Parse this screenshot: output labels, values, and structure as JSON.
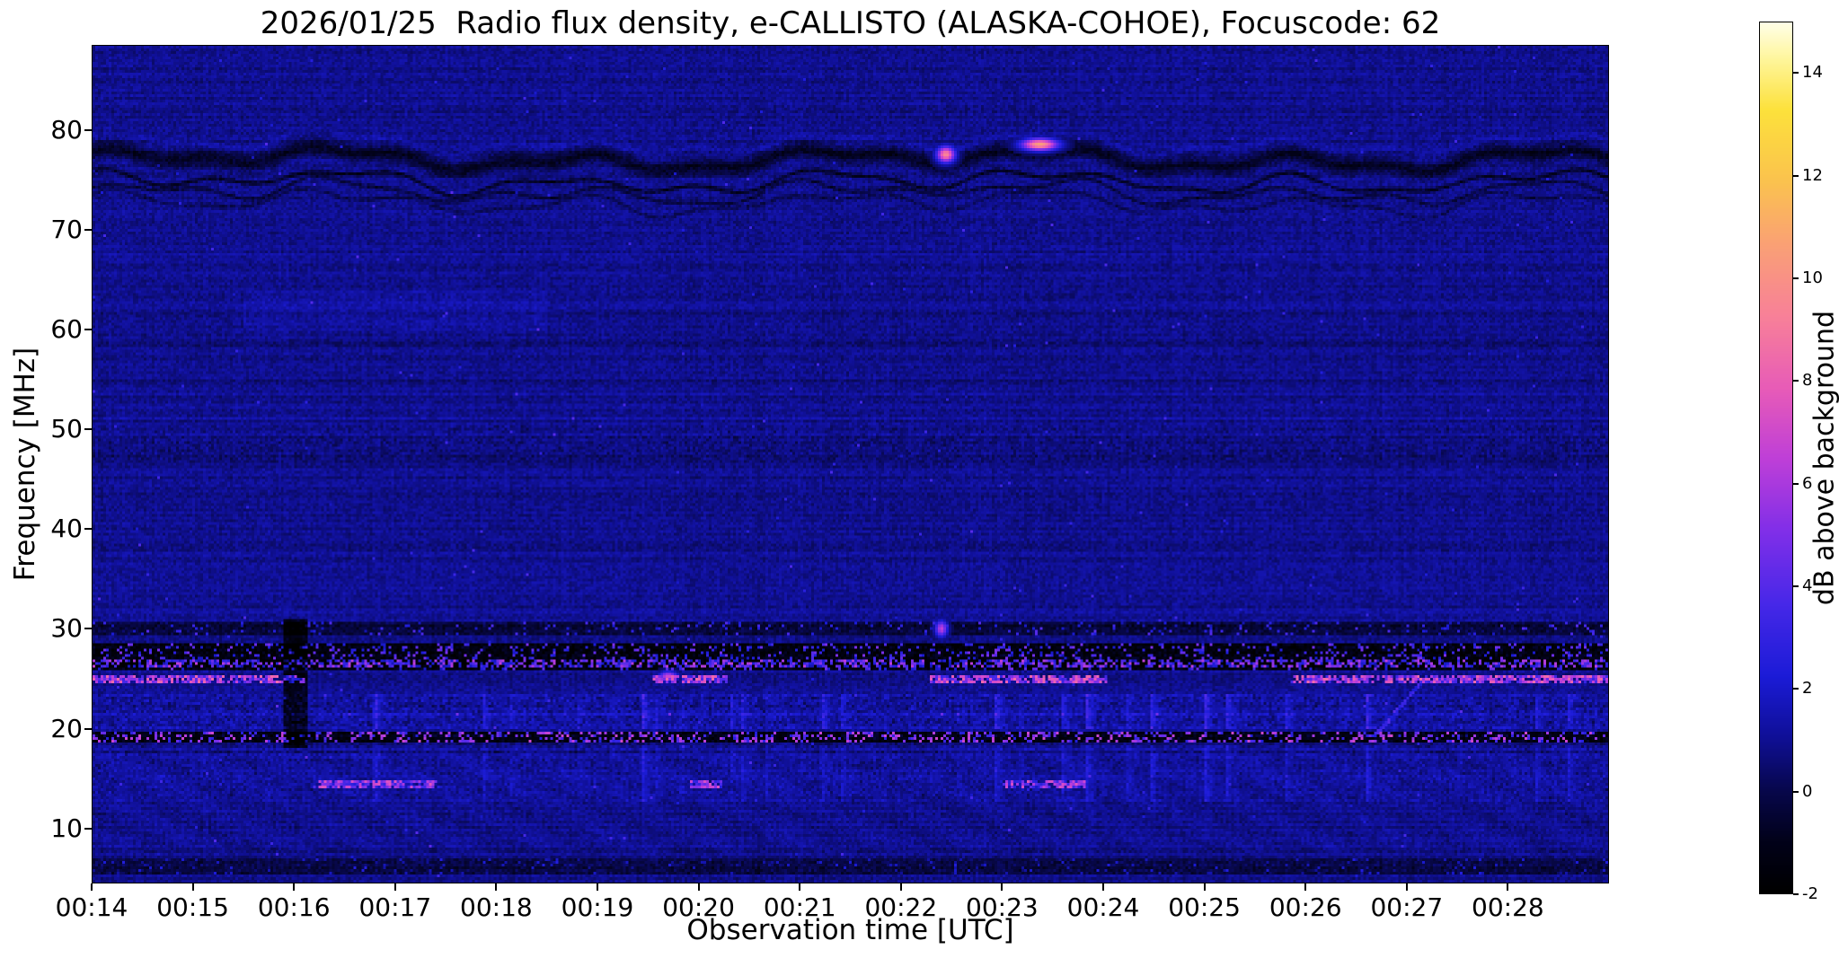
{
  "chart_data": {
    "type": "heatmap",
    "title": "2026/01/25  Radio flux density, e-CALLISTO (ALASKA-COHOE), Focuscode: 62",
    "xlabel": "Observation time [UTC]",
    "ylabel": "Frequency [MHz]",
    "x_ticks": [
      "00:14",
      "00:15",
      "00:16",
      "00:17",
      "00:18",
      "00:19",
      "00:20",
      "00:21",
      "00:22",
      "00:23",
      "00:24",
      "00:25",
      "00:26",
      "00:27",
      "00:28"
    ],
    "x_range": [
      "00:14",
      "00:29"
    ],
    "y_ticks": [
      10,
      20,
      30,
      40,
      50,
      60,
      70,
      80
    ],
    "y_range_mhz": [
      4.5,
      88.5
    ],
    "background_level_db": 0.9,
    "colorbar": {
      "label": "dB above background",
      "ticks": [
        -2,
        0,
        2,
        4,
        6,
        8,
        10,
        12,
        14
      ],
      "range": [
        -2,
        15
      ],
      "colormap_stops": [
        [
          0.0,
          "#000000"
        ],
        [
          0.06,
          "#02021a"
        ],
        [
          0.12,
          "#08084e"
        ],
        [
          0.18,
          "#101098"
        ],
        [
          0.25,
          "#1c1cd8"
        ],
        [
          0.33,
          "#4628e8"
        ],
        [
          0.42,
          "#8430e8"
        ],
        [
          0.5,
          "#c040d8"
        ],
        [
          0.58,
          "#e85cb8"
        ],
        [
          0.66,
          "#f8809a"
        ],
        [
          0.74,
          "#fa9f78"
        ],
        [
          0.82,
          "#fbc44e"
        ],
        [
          0.9,
          "#fde23c"
        ],
        [
          0.96,
          "#fff7a0"
        ],
        [
          1.0,
          "#ffffe8"
        ]
      ]
    },
    "features": [
      {
        "type": "ripple_band",
        "f_lo": 70.5,
        "f_hi": 79.8,
        "desc": "wavy ionospheric ripple band near 73-78 MHz"
      },
      {
        "type": "smudge",
        "t0": 0.1,
        "t1": 0.3,
        "f_lo": 60,
        "f_hi": 64,
        "amp": 0.4,
        "desc": "faint brighter patch 00:15.5-00:18.5"
      },
      {
        "type": "dark_mottle",
        "f_lo": 47,
        "f_hi": 50.5,
        "amp": 0.55,
        "desc": "mottled darker band near 49 MHz"
      },
      {
        "type": "dark_band",
        "f_lo": 29.3,
        "f_hi": 30.6,
        "amp": 1.5,
        "speckle": 0.07,
        "speckle_hi": 4,
        "desc": "dark RFI band ~30 MHz"
      },
      {
        "type": "dark_band",
        "f_lo": 25.8,
        "f_hi": 28.6,
        "amp": 2.8,
        "speckle": 0.17,
        "speckle_hi": 5,
        "desc": "black band 26-28.5 MHz with bright speckles"
      },
      {
        "type": "speckle_line",
        "f": 26.4,
        "hw": 0.4,
        "density": 0.5,
        "lo": 1.5,
        "hi": 6.5,
        "desc": "bright speckled line ~26.4 MHz"
      },
      {
        "type": "segments_line",
        "f": 24.9,
        "hw": 0.38,
        "ranges": [
          [
            0.0,
            0.14
          ],
          [
            0.37,
            0.42
          ],
          [
            0.55,
            0.67
          ],
          [
            0.79,
            1.0
          ]
        ],
        "lo": 3,
        "hi": 8.5,
        "desc": "magenta emission line ~25 MHz"
      },
      {
        "type": "noise_band",
        "f_lo": 19.8,
        "f_hi": 23.5,
        "amp": 1.2,
        "desc": "noisy blue speckle region 20-23.5 MHz"
      },
      {
        "type": "dark_band",
        "f_lo": 18.6,
        "f_hi": 19.6,
        "amp": 2.6,
        "speckle": 0.28,
        "speckle_hi": 7,
        "desc": "black band ~19 MHz with magenta speckles"
      },
      {
        "type": "noise_band",
        "f_lo": 12.5,
        "f_hi": 18.3,
        "amp": 0.7,
        "desc": "mottled region 12.5-18 MHz"
      },
      {
        "type": "segments_line",
        "f": 14.3,
        "hw": 0.4,
        "ranges": [
          [
            0.15,
            0.23
          ],
          [
            0.395,
            0.415
          ],
          [
            0.6,
            0.655
          ]
        ],
        "lo": 2.5,
        "hi": 7.5,
        "desc": "bright segments ~14.3 MHz"
      },
      {
        "type": "dark_band",
        "f_lo": 5.2,
        "f_hi": 7.0,
        "amp": 1.3,
        "speckle": 0.05,
        "speckle_hi": 2.5,
        "desc": "dark band near bottom 5-7 MHz"
      },
      {
        "type": "dark_column",
        "t0": 0.126,
        "t1": 0.142,
        "f_lo": 18,
        "f_hi": 31,
        "amp": 2.4,
        "desc": "dark vertical gap ~00:15.9"
      },
      {
        "type": "blob",
        "t": 0.563,
        "f": 77.6,
        "tw": 0.006,
        "fw": 0.8,
        "v": 9.5,
        "desc": "bright burst at 00:22.4, ~78 MHz"
      },
      {
        "type": "blob",
        "t": 0.625,
        "f": 78.6,
        "tw": 0.012,
        "fw": 0.6,
        "v": 10.5,
        "desc": "bright burst at 00:23.4, ~78.5 MHz"
      },
      {
        "type": "blob",
        "t": 0.56,
        "f": 30.0,
        "tw": 0.004,
        "fw": 0.8,
        "v": 6.5,
        "desc": "bright spot at 00:22.4, ~30 MHz"
      },
      {
        "type": "blob",
        "t": 0.38,
        "f": 25.2,
        "tw": 0.006,
        "fw": 0.5,
        "v": 7,
        "desc": "bright cluster at 00:19.7, ~25 MHz"
      },
      {
        "type": "diag_line",
        "t0": 0.845,
        "t1": 0.878,
        "f0": 19.0,
        "f1": 24.8,
        "hw": 0.25,
        "lo": 2,
        "hi": 4,
        "desc": "faint diagonal drifting streak near 00:27"
      }
    ]
  }
}
